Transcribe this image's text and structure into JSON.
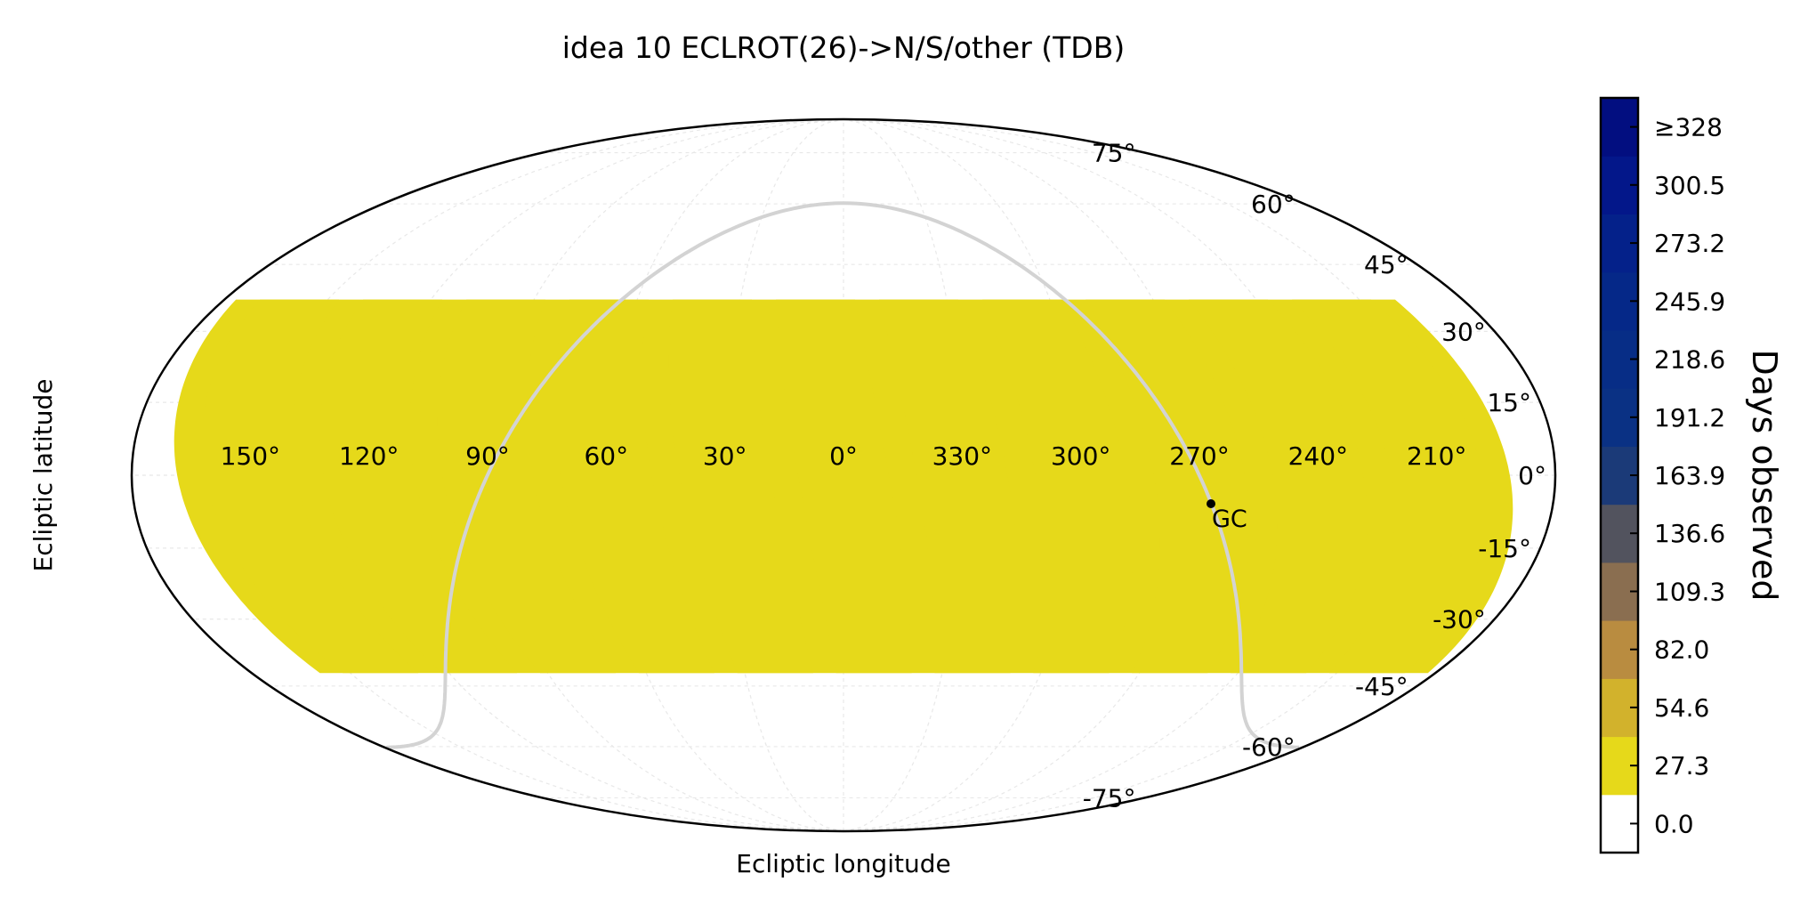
{
  "chart_data": {
    "type": "heatmap",
    "projection": "mollweide",
    "title": "idea 10 ECLROT(26)->N/S/other (TDB)",
    "xlabel": "Ecliptic longitude",
    "ylabel": "Ecliptic latitude",
    "lon_ticks": [
      "150°",
      "120°",
      "90°",
      "60°",
      "30°",
      "0°",
      "330°",
      "300°",
      "270°",
      "240°",
      "210°"
    ],
    "lon_values": [
      150,
      120,
      90,
      60,
      30,
      0,
      330,
      300,
      270,
      240,
      210
    ],
    "lat_ticks": [
      "75°",
      "60°",
      "45°",
      "30°",
      "15°",
      "0°",
      "-15°",
      "-30°",
      "-45°",
      "-60°",
      "-75°"
    ],
    "lat_values": [
      75,
      60,
      45,
      30,
      15,
      0,
      -15,
      -30,
      -45,
      -60,
      -75
    ],
    "grid": true,
    "colorbar": {
      "label": "Days observed",
      "tick_labels": [
        "≥328",
        "300.5",
        "273.2",
        "245.9",
        "218.6",
        "191.2",
        "163.9",
        "136.6",
        "109.3",
        "82.0",
        "54.6",
        "27.3",
        "0.0"
      ],
      "tick_values": [
        328,
        300.5,
        273.2,
        245.9,
        218.6,
        191.2,
        163.9,
        136.6,
        109.3,
        82.0,
        54.6,
        27.3,
        0.0
      ],
      "colors": [
        "#ffffff",
        "#e6d91a",
        "#d2b22c",
        "#b98c40",
        "#8a6e50",
        "#52535e",
        "#1b3a78",
        "#0a3184",
        "#072d86",
        "#052888",
        "#04218a",
        "#03178a",
        "#020e80"
      ]
    },
    "galactic_center": {
      "label": "GC",
      "lon": 270,
      "lat": -5
    },
    "fields": [
      {
        "center_lon": 180,
        "color_index": 1
      },
      {
        "center_lon": 150,
        "color_index": 1
      },
      {
        "center_lon": 120,
        "color_index": 1
      },
      {
        "center_lon": 90,
        "color_index": 1
      },
      {
        "center_lon": 60,
        "color_index": 1
      },
      {
        "center_lon": 30,
        "color_index": 1
      },
      {
        "center_lon": 0,
        "color_index": 1
      },
      {
        "center_lon": 330,
        "color_index": 1
      },
      {
        "center_lon": 300,
        "color_index": 1
      },
      {
        "center_lon": 270,
        "color_index": 1
      },
      {
        "center_lon": 240,
        "color_index": 1
      },
      {
        "center_lon": 210,
        "color_index": 1
      }
    ]
  }
}
